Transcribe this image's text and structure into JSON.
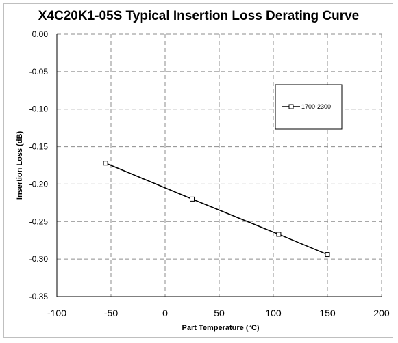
{
  "chart_data": {
    "type": "line",
    "title": "X4C20K1-05S Typical Insertion Loss Derating Curve",
    "xlabel": "Part Temperature (°C)",
    "ylabel": "Insertion Loss (dB)",
    "xlim": [
      -100,
      200
    ],
    "ylim": [
      -0.35,
      0.0
    ],
    "x_ticks": [
      -100,
      -50,
      0,
      50,
      100,
      150,
      200
    ],
    "y_ticks": [
      0.0,
      -0.05,
      -0.1,
      -0.15,
      -0.2,
      -0.25,
      -0.3,
      -0.35
    ],
    "x_tick_labels": [
      "-100",
      "-50",
      "0",
      "50",
      "100",
      "150",
      "200"
    ],
    "y_tick_labels": [
      "0.00",
      "-0.05",
      "-0.10",
      "-0.15",
      "-0.20",
      "-0.25",
      "-0.30",
      "-0.35"
    ],
    "grid": true,
    "legend_position": "top-right",
    "series": [
      {
        "name": "1700-2300",
        "color": "#000000",
        "marker": "square",
        "x": [
          -55,
          25,
          105,
          150
        ],
        "y": [
          -0.172,
          -0.22,
          -0.267,
          -0.294
        ]
      }
    ]
  }
}
